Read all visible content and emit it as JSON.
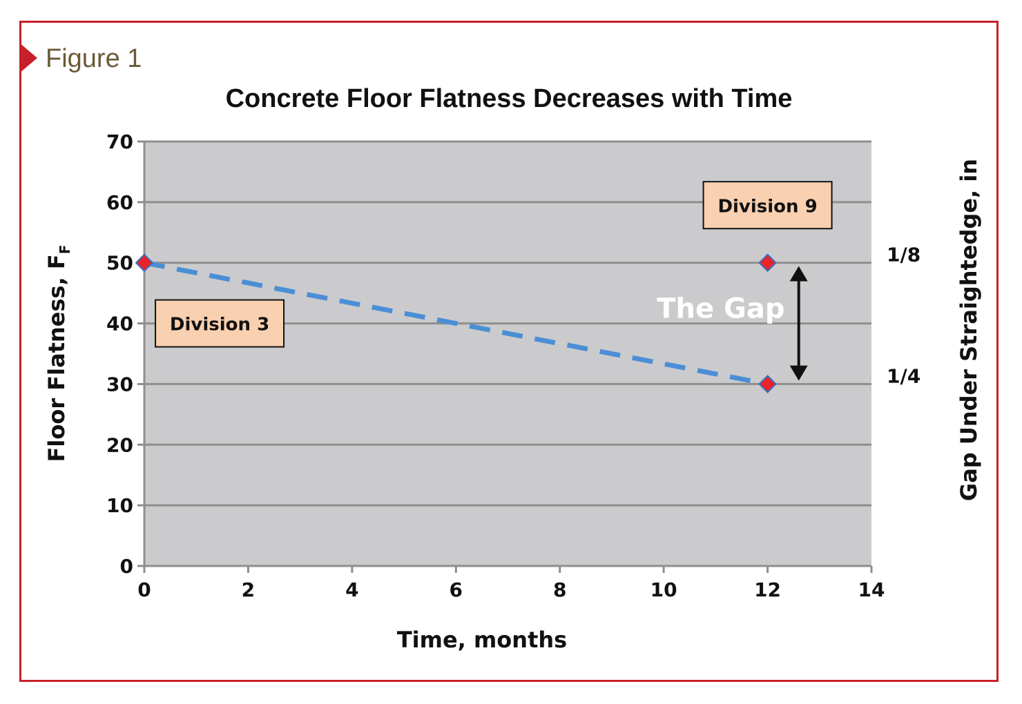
{
  "figure_label": "Figure 1",
  "colors": {
    "frame": "#c8202a",
    "plot_bg": "#cbcbcd",
    "grid": "#8e8e8e",
    "line": "#4a8fd6",
    "marker": "#e8232a",
    "marker_edge": "#3a6fc4",
    "box_fill": "#f9d0b0",
    "figure_label": "#6b5a38"
  },
  "chart_data": {
    "type": "line",
    "title": "Concrete Floor Flatness Decreases with Time",
    "xlabel": "Time, months",
    "ylabel": "Floor Flatness, F",
    "ylabel_subscript": "F",
    "y2label": "Gap Under Straightedge, in",
    "xlim": [
      0,
      14
    ],
    "ylim": [
      0,
      70
    ],
    "xticks": [
      0,
      2,
      4,
      6,
      8,
      10,
      12,
      14
    ],
    "yticks": [
      0,
      10,
      20,
      30,
      40,
      50,
      60,
      70
    ],
    "grid": true,
    "y2ticks": [
      {
        "y": 50,
        "label": "1/8"
      },
      {
        "y": 30,
        "label": "1/4"
      }
    ],
    "series": [
      {
        "style": "dashed",
        "x": [
          0,
          12
        ],
        "y": [
          50,
          30
        ]
      }
    ],
    "points": [
      {
        "x": 0,
        "y": 50
      },
      {
        "x": 12,
        "y": 50
      },
      {
        "x": 12,
        "y": 30
      }
    ],
    "annotations": [
      {
        "text": "Division 3",
        "x": 1.45,
        "y": 40.0
      },
      {
        "text": "Division 9",
        "x": 12.0,
        "y": 59.5
      },
      {
        "text": "The Gap",
        "x": 11.1,
        "y": 42.5
      }
    ],
    "gap_arrow": {
      "x": 12.6,
      "y_from": 49.0,
      "y_to": 31.0
    }
  }
}
